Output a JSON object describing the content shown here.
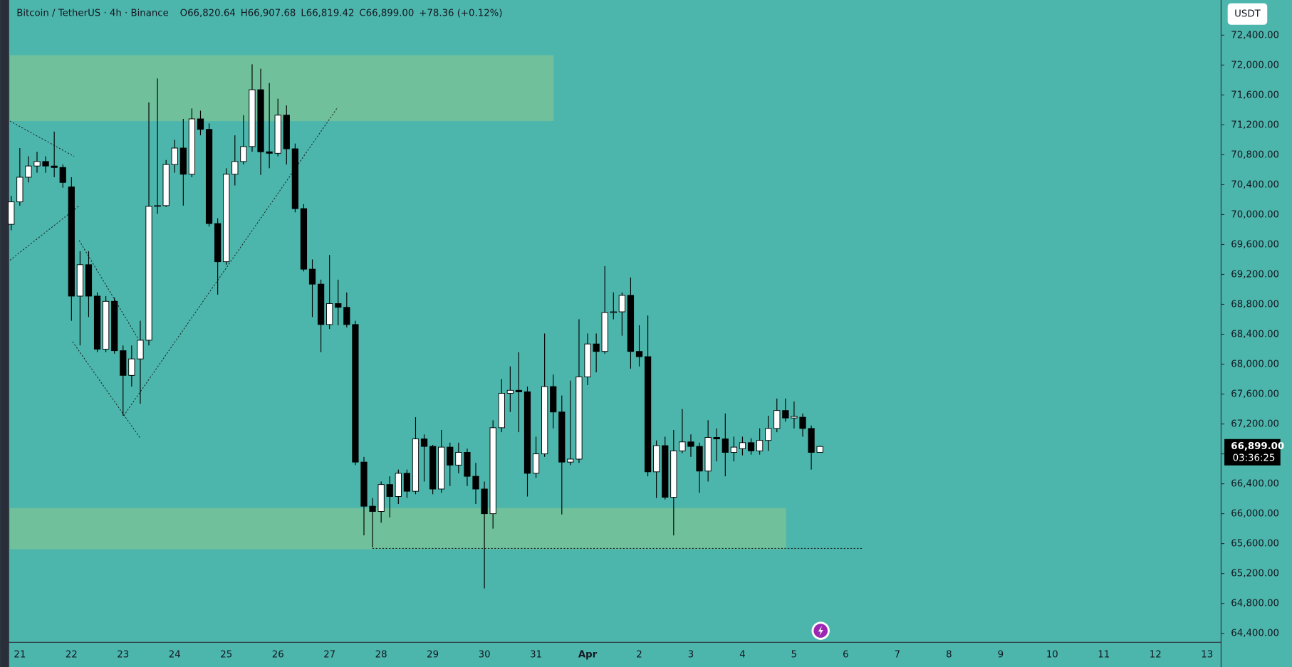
{
  "header": {
    "symbol": "Bitcoin / TetherUS · 4h · Binance",
    "ohlc": [
      {
        "key": "O",
        "value": "66,820.64"
      },
      {
        "key": "H",
        "value": "66,907.68"
      },
      {
        "key": "L",
        "value": "66,819.42"
      },
      {
        "key": "C",
        "value": "66,899.00"
      }
    ],
    "change": "+78.36 (+0.12%)"
  },
  "currency_button": "USDT",
  "chart_data": {
    "type": "candlestick",
    "up_color": "#ffffff",
    "down_color": "#000000",
    "open": [
      69870,
      70170,
      70500,
      70650,
      70710,
      70650,
      70630,
      70370,
      68910,
      69330,
      68910,
      68200,
      68840,
      68180,
      67850,
      68070,
      68320,
      70110,
      70120,
      70670,
      70890,
      70540,
      71280,
      71140,
      69880,
      69370,
      70540,
      70710,
      70910,
      71670,
      70840,
      70820,
      71330,
      70880,
      70080,
      69270,
      69070,
      68530,
      68810,
      68760,
      68530,
      66690,
      66100,
      66030,
      66390,
      66230,
      66540,
      66300,
      67000,
      66900,
      66330,
      66890,
      66650,
      66820,
      66500,
      66330,
      66000,
      67150,
      67610,
      67650,
      67630,
      66540,
      66800,
      67700,
      67360,
      66690,
      66730,
      67830,
      68270,
      68170,
      68690,
      68700,
      68920,
      68170,
      68100,
      66560,
      66910,
      66220,
      66840,
      66960,
      66900,
      66570,
      67020,
      67000,
      66820,
      66870,
      66950,
      66840,
      66980,
      67140,
      67380,
      67280,
      67290,
      67140,
      66820.64
    ],
    "high": [
      70250,
      70890,
      70780,
      70840,
      70780,
      71110,
      70670,
      70500,
      69510,
      69510,
      68960,
      68910,
      68890,
      68250,
      68250,
      68580,
      71500,
      71820,
      70730,
      71000,
      71280,
      71420,
      71390,
      71220,
      69950,
      70620,
      71060,
      71330,
      72010,
      71950,
      71760,
      71550,
      71460,
      70950,
      70140,
      69400,
      69130,
      69460,
      69130,
      68960,
      68580,
      66760,
      66210,
      66430,
      66500,
      66590,
      66590,
      67290,
      67060,
      66920,
      67120,
      66950,
      66950,
      66870,
      66680,
      66430,
      67250,
      67800,
      67970,
      68160,
      67700,
      67030,
      68410,
      67860,
      67580,
      67780,
      68600,
      68410,
      68410,
      69310,
      68960,
      68960,
      69160,
      68520,
      68650,
      66980,
      67030,
      67120,
      67400,
      67060,
      66950,
      67250,
      67140,
      67340,
      67030,
      67030,
      67010,
      67140,
      67310,
      67540,
      67540,
      67500,
      67340,
      67180,
      66907.68
    ],
    "low": [
      69790,
      70120,
      70430,
      70560,
      70560,
      70500,
      70360,
      68580,
      68250,
      68630,
      68160,
      68160,
      68140,
      67310,
      67700,
      67470,
      68250,
      70010,
      70100,
      70560,
      70120,
      70500,
      71060,
      69840,
      68930,
      69330,
      70390,
      70670,
      70840,
      70530,
      70620,
      70780,
      70670,
      70030,
      69240,
      68630,
      68160,
      68470,
      68520,
      68490,
      66650,
      65710,
      65550,
      65880,
      65950,
      66130,
      66210,
      66260,
      66430,
      66260,
      66280,
      66370,
      66540,
      66370,
      66130,
      65000,
      65800,
      67090,
      67360,
      67090,
      66230,
      66480,
      66760,
      67140,
      65990,
      66650,
      66680,
      67720,
      67890,
      68140,
      68600,
      68380,
      67940,
      67970,
      66500,
      66210,
      66190,
      65710,
      66810,
      66760,
      66280,
      66430,
      66700,
      66500,
      66700,
      66780,
      66790,
      66790,
      66840,
      67090,
      67230,
      67140,
      67030,
      66590,
      66819.42
    ],
    "close": [
      70170,
      70500,
      70650,
      70710,
      70650,
      70630,
      70430,
      68910,
      69330,
      68910,
      68200,
      68840,
      68180,
      67850,
      68070,
      68320,
      70110,
      70120,
      70670,
      70890,
      70540,
      71280,
      71140,
      69880,
      69370,
      70540,
      70710,
      70910,
      71670,
      70840,
      70820,
      71330,
      70880,
      70080,
      69270,
      69070,
      68530,
      68810,
      68760,
      68530,
      66690,
      66100,
      66030,
      66390,
      66230,
      66540,
      66300,
      67000,
      66900,
      66330,
      66890,
      66650,
      66820,
      66500,
      66330,
      66000,
      67150,
      67610,
      67650,
      67630,
      66540,
      66800,
      67700,
      67360,
      66690,
      66730,
      67830,
      68270,
      68170,
      68690,
      68700,
      68920,
      68170,
      68100,
      66560,
      66910,
      66220,
      66840,
      66960,
      66900,
      66570,
      67020,
      67000,
      66820,
      66890,
      66950,
      66840,
      66980,
      67140,
      67380,
      67280,
      67300,
      67140,
      66820,
      66899
    ],
    "ylim": [
      64280,
      72870
    ],
    "yticks": [
      {
        "value": 72400,
        "label": "72,400.00"
      },
      {
        "value": 72000,
        "label": "72,000.00"
      },
      {
        "value": 71600,
        "label": "71,600.00"
      },
      {
        "value": 71200,
        "label": "71,200.00"
      },
      {
        "value": 70800,
        "label": "70,800.00"
      },
      {
        "value": 70400,
        "label": "70,400.00"
      },
      {
        "value": 70000,
        "label": "70,000.00"
      },
      {
        "value": 69600,
        "label": "69,600.00"
      },
      {
        "value": 69200,
        "label": "69,200.00"
      },
      {
        "value": 68800,
        "label": "68,800.00"
      },
      {
        "value": 68400,
        "label": "68,400.00"
      },
      {
        "value": 68000,
        "label": "68,000.00"
      },
      {
        "value": 67600,
        "label": "67,600.00"
      },
      {
        "value": 67200,
        "label": "67,200.00"
      },
      {
        "value": 66800,
        "label": "66,800.00"
      },
      {
        "value": 66400,
        "label": "66,400.00"
      },
      {
        "value": 66000,
        "label": "66,000.00"
      },
      {
        "value": 65600,
        "label": "65,600.00"
      },
      {
        "value": 65200,
        "label": "65,200.00"
      },
      {
        "value": 64800,
        "label": "64,800.00"
      },
      {
        "value": 64400,
        "label": "64,400.00"
      }
    ],
    "x_tick_labels": [
      "21",
      "22",
      "23",
      "24",
      "25",
      "26",
      "27",
      "28",
      "29",
      "30",
      "31",
      "Apr",
      "2",
      "3",
      "4",
      "5",
      "6",
      "7",
      "8",
      "9",
      "10",
      "11",
      "12",
      "13"
    ],
    "last_price": {
      "value": 66899,
      "label": "66,899.00"
    },
    "countdown": "03:36:25"
  }
}
